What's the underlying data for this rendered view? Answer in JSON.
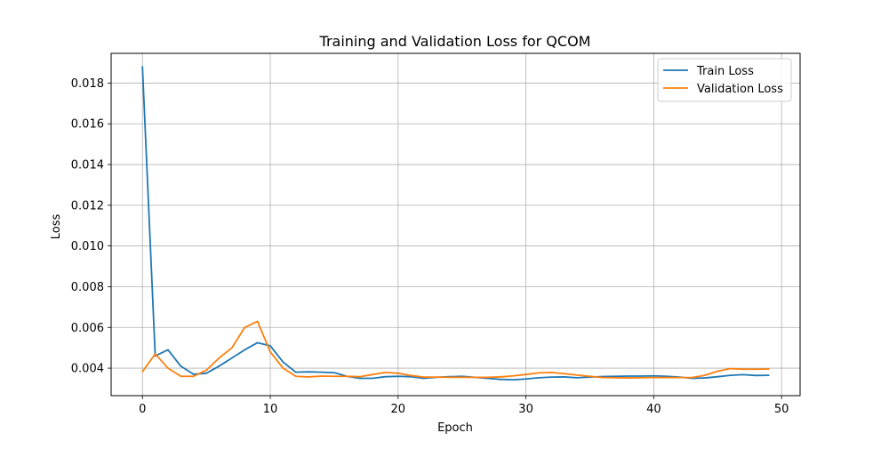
{
  "chart_data": {
    "type": "line",
    "title": "Training and Validation Loss for QCOM",
    "xlabel": "Epoch",
    "ylabel": "Loss",
    "xlim": [
      -2.45,
      51.45
    ],
    "ylim": [
      0.00265,
      0.01946
    ],
    "xticks": [
      0,
      10,
      20,
      30,
      40,
      50
    ],
    "xtick_labels": [
      "0",
      "10",
      "20",
      "30",
      "40",
      "50"
    ],
    "yticks": [
      0.004,
      0.006,
      0.008,
      0.01,
      0.012,
      0.014,
      0.016,
      0.018
    ],
    "ytick_labels": [
      "0.004",
      "0.006",
      "0.008",
      "0.010",
      "0.012",
      "0.014",
      "0.016",
      "0.018"
    ],
    "grid": true,
    "legend_position": "top-right",
    "x": [
      0,
      1,
      2,
      3,
      4,
      5,
      6,
      7,
      8,
      9,
      10,
      11,
      12,
      13,
      14,
      15,
      16,
      17,
      18,
      19,
      20,
      21,
      22,
      23,
      24,
      25,
      26,
      27,
      28,
      29,
      30,
      31,
      32,
      33,
      34,
      35,
      36,
      37,
      38,
      39,
      40,
      41,
      42,
      43,
      44,
      45,
      46,
      47,
      48,
      49
    ],
    "series": [
      {
        "name": "Train Loss",
        "color": "#1f77b4",
        "values": [
          0.0188,
          0.0046,
          0.0049,
          0.0041,
          0.0037,
          0.00375,
          0.0041,
          0.0045,
          0.0049,
          0.00525,
          0.0051,
          0.0043,
          0.0038,
          0.00382,
          0.0038,
          0.00378,
          0.0036,
          0.0035,
          0.0035,
          0.00358,
          0.0036,
          0.00358,
          0.0035,
          0.00355,
          0.00358,
          0.0036,
          0.00355,
          0.0035,
          0.00345,
          0.00343,
          0.00347,
          0.00353,
          0.00356,
          0.00357,
          0.00353,
          0.00356,
          0.00359,
          0.0036,
          0.00361,
          0.00361,
          0.00362,
          0.0036,
          0.00356,
          0.0035,
          0.00352,
          0.00358,
          0.00365,
          0.00368,
          0.00364,
          0.00365
        ]
      },
      {
        "name": "Validation Loss",
        "color": "#ff7f0e",
        "values": [
          0.00383,
          0.0047,
          0.004,
          0.0036,
          0.0036,
          0.0039,
          0.0045,
          0.005,
          0.006,
          0.0063,
          0.0048,
          0.004,
          0.0036,
          0.00357,
          0.00361,
          0.0036,
          0.0036,
          0.00358,
          0.00369,
          0.00379,
          0.00375,
          0.00364,
          0.00356,
          0.00356,
          0.00355,
          0.00355,
          0.00355,
          0.00355,
          0.00357,
          0.00362,
          0.00369,
          0.00377,
          0.00379,
          0.00373,
          0.00366,
          0.0036,
          0.00354,
          0.00353,
          0.00352,
          0.00353,
          0.00354,
          0.00354,
          0.00354,
          0.00354,
          0.00365,
          0.00385,
          0.00398,
          0.00395,
          0.00395,
          0.00396
        ]
      }
    ]
  }
}
